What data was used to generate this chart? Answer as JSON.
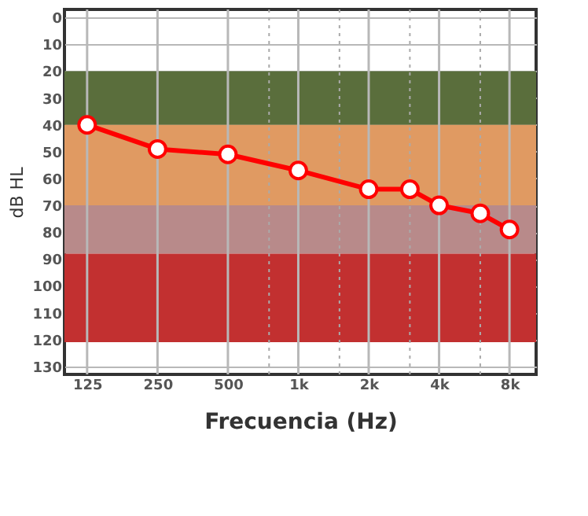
{
  "chart_data": {
    "type": "line",
    "xlabel": "Frecuencia (Hz)",
    "ylabel": "dB HL",
    "x": [
      125,
      250,
      500,
      1000,
      2000,
      3000,
      4000,
      6000,
      8000
    ],
    "series": [
      {
        "color": "#ff0000",
        "values": [
          40,
          49,
          51,
          57,
          64,
          64,
          70,
          73,
          79
        ]
      }
    ],
    "log": "x",
    "xlim": [
      100,
      10400
    ],
    "xticks": [
      125,
      250,
      500,
      {
        "value": 750,
        "label": null
      },
      {
        "value": 1000,
        "label": "1k"
      },
      {
        "value": 1500,
        "label": null
      },
      {
        "value": 2000,
        "label": "2k"
      },
      {
        "value": 3000,
        "label": null
      },
      {
        "value": 4000,
        "label": "4k"
      },
      {
        "value": 6000,
        "label": null
      },
      {
        "value": 8000,
        "label": "8k"
      }
    ],
    "ylim": [
      133,
      -3
    ],
    "yticks": [
      0,
      10,
      20,
      30,
      40,
      50,
      60,
      70,
      80,
      90,
      100,
      110,
      120,
      130
    ],
    "bands": [
      {
        "axis": "y",
        "from": 20,
        "to": 40,
        "color": "#5a6e3c"
      },
      {
        "axis": "y",
        "from": 40,
        "to": 70,
        "color": "#e09a62"
      },
      {
        "axis": "y",
        "from": 70,
        "to": 88,
        "color": "#b88a8a"
      },
      {
        "axis": "y",
        "from": 88,
        "to": 121,
        "color": "#c23030"
      }
    ],
    "grid": true,
    "marker": "circle",
    "line_style": "solid"
  }
}
